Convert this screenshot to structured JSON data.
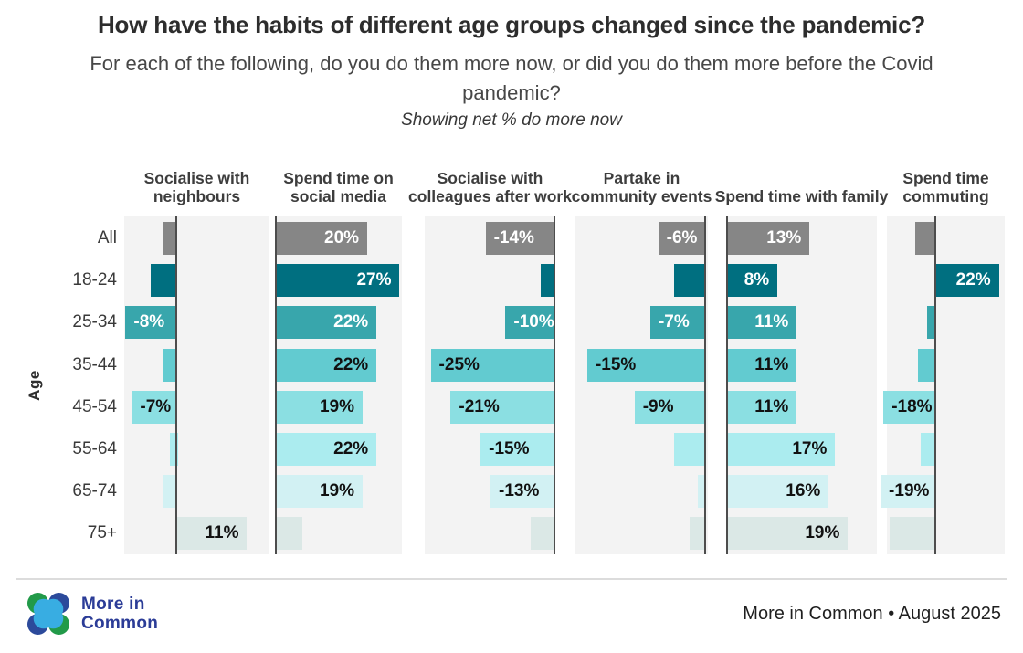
{
  "chart_data": {
    "type": "bar",
    "orientation": "horizontal",
    "title": "How have the habits of different age groups changed since the pandemic?",
    "subtitle": "For each of the following, do you do them more now, or did you do them more before the Covid pandemic?",
    "annotation": "Showing net % do more now",
    "ylabel": "Age",
    "unit": "net %",
    "grid": false,
    "legend": "none",
    "categories": [
      "All",
      "18-24",
      "25-34",
      "35-44",
      "45-54",
      "55-64",
      "65-74",
      "75+"
    ],
    "row_colors": [
      "#868686",
      "#006F80",
      "#38A6AC",
      "#62CBD0",
      "#8BDFE2",
      "#ABECEF",
      "#D2F1F3",
      "#DBE8E6"
    ],
    "value_label_colors": [
      "#ffffff",
      "#ffffff",
      "#ffffff",
      "#111111",
      "#111111",
      "#111111",
      "#111111",
      "#111111"
    ],
    "panel_bg": "#f3f3f3",
    "zero_line_color": "#4d4d4d",
    "series": [
      {
        "name": "Socialise with neighbours",
        "values": [
          -2,
          -4,
          -8,
          -2,
          -7,
          -1,
          -2,
          11
        ],
        "labels": [
          "",
          "",
          "-8%",
          "",
          "-7%",
          "",
          "",
          "11%"
        ],
        "xlim": [
          -8.2,
          14.5
        ]
      },
      {
        "name": "Spend time on social media",
        "values": [
          20,
          27,
          22,
          22,
          19,
          22,
          19,
          6
        ],
        "labels": [
          "20%",
          "27%",
          "22%",
          "22%",
          "19%",
          "22%",
          "19%",
          ""
        ],
        "xlim": [
          0,
          27.5
        ]
      },
      {
        "name": "Socialise with colleagues after work",
        "values": [
          -14,
          -3,
          -10,
          -25,
          -21,
          -15,
          -13,
          -5
        ],
        "labels": [
          "-14%",
          "",
          "-10%",
          "-25%",
          "-21%",
          "-15%",
          "-13%",
          ""
        ],
        "xlim": [
          -26.2,
          0
        ]
      },
      {
        "name": "Partake in community events",
        "values": [
          -6,
          -4,
          -7,
          -15,
          -9,
          -4,
          -1,
          -2
        ],
        "labels": [
          "-6%",
          "",
          "-7%",
          "-15%",
          "-9%",
          "",
          "",
          ""
        ],
        "xlim": [
          -16.5,
          0.3
        ]
      },
      {
        "name": "Spend time with family",
        "values": [
          13,
          8,
          11,
          11,
          11,
          17,
          16,
          19
        ],
        "labels": [
          "13%",
          "8%",
          "11%",
          "11%",
          "11%",
          "17%",
          "16%",
          "19%"
        ],
        "xlim": [
          0,
          23.5
        ]
      },
      {
        "name": "Spend time commuting",
        "values": [
          -7,
          22,
          -3,
          -6,
          -18,
          -5,
          -19,
          -16
        ],
        "labels": [
          "",
          "22%",
          "",
          "",
          "-18%",
          "",
          "-19%",
          ""
        ],
        "xlim": [
          -16.8,
          24.0
        ]
      }
    ]
  },
  "footer": {
    "brand_line1": "More in",
    "brand_line2": "Common",
    "source": "More in Common • August 2025"
  },
  "colors": {
    "logo_green": "#229A49",
    "logo_dark_blue": "#2C4A9B",
    "logo_light_blue": "#38ADE2",
    "logo_text": "#2B3C97",
    "divider": "#dcdcdc",
    "page_bg": "#ffffff"
  }
}
